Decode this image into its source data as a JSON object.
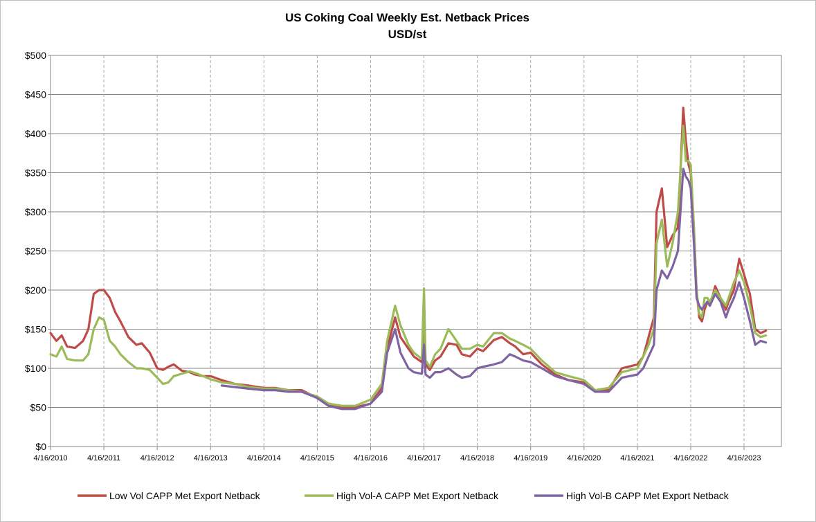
{
  "chart_data": {
    "type": "line",
    "title": "US Coking Coal Weekly Est. Netback Prices",
    "subtitle": "USD/st",
    "xlabel": "",
    "ylabel": "",
    "ylim": [
      0,
      500
    ],
    "y_ticks": [
      "$0",
      "$50",
      "$100",
      "$150",
      "$200",
      "$250",
      "$300",
      "$350",
      "$400",
      "$450",
      "$500"
    ],
    "x_ticks": [
      "4/16/2010",
      "4/16/2011",
      "4/16/2012",
      "4/16/2013",
      "4/16/2014",
      "4/16/2015",
      "4/16/2016",
      "4/16/2017",
      "4/16/2018",
      "4/16/2019",
      "4/16/2020",
      "4/16/2021",
      "4/16/2022",
      "4/16/2023"
    ],
    "xlim": [
      2010.29,
      2023.99
    ],
    "grid": {
      "horizontal": true,
      "vertical": "dashed"
    },
    "legend_position": "bottom",
    "series": [
      {
        "name": "Low Vol CAPP Met Export Netback",
        "color": "#be4b48",
        "x": [
          2010.29,
          2010.4,
          2010.5,
          2010.6,
          2010.75,
          2010.9,
          2011.0,
          2011.1,
          2011.2,
          2011.29,
          2011.4,
          2011.5,
          2011.6,
          2011.75,
          2011.9,
          2012.0,
          2012.15,
          2012.29,
          2012.4,
          2012.5,
          2012.6,
          2012.75,
          2012.9,
          2013.0,
          2013.15,
          2013.29,
          2013.5,
          2013.75,
          2014.0,
          2014.29,
          2014.5,
          2014.75,
          2015.0,
          2015.29,
          2015.5,
          2015.75,
          2016.0,
          2016.29,
          2016.5,
          2016.6,
          2016.75,
          2016.85,
          2017.0,
          2017.1,
          2017.25,
          2017.29,
          2017.32,
          2017.4,
          2017.5,
          2017.6,
          2017.75,
          2017.9,
          2018.0,
          2018.15,
          2018.29,
          2018.4,
          2018.6,
          2018.75,
          2018.9,
          2019.0,
          2019.15,
          2019.29,
          2019.5,
          2019.75,
          2020.0,
          2020.29,
          2020.5,
          2020.75,
          2021.0,
          2021.29,
          2021.4,
          2021.5,
          2021.6,
          2021.65,
          2021.75,
          2021.85,
          2021.95,
          2022.05,
          2022.15,
          2022.2,
          2022.25,
          2022.29,
          2022.35,
          2022.4,
          2022.45,
          2022.5,
          2022.55,
          2022.6,
          2022.65,
          2022.75,
          2022.85,
          2022.95,
          2023.0,
          2023.1,
          2023.2,
          2023.29,
          2023.4,
          2023.5,
          2023.6,
          2023.7
        ],
        "values": [
          145,
          135,
          142,
          128,
          126,
          135,
          150,
          195,
          200,
          200,
          190,
          172,
          160,
          140,
          130,
          132,
          120,
          100,
          98,
          102,
          105,
          97,
          95,
          92,
          90,
          90,
          85,
          80,
          78,
          75,
          75,
          72,
          72,
          62,
          52,
          50,
          50,
          55,
          75,
          125,
          165,
          140,
          125,
          115,
          108,
          170,
          105,
          98,
          110,
          115,
          132,
          130,
          118,
          115,
          125,
          122,
          136,
          140,
          132,
          128,
          118,
          120,
          105,
          92,
          85,
          82,
          72,
          72,
          100,
          105,
          115,
          140,
          165,
          300,
          330,
          255,
          270,
          280,
          433,
          390,
          360,
          350,
          280,
          200,
          165,
          160,
          175,
          185,
          180,
          205,
          190,
          175,
          185,
          200,
          240,
          220,
          195,
          150,
          145,
          148
        ]
      },
      {
        "name": "High Vol-A CAPP Met Export Netback",
        "color": "#9bbb59",
        "x": [
          2010.29,
          2010.4,
          2010.5,
          2010.6,
          2010.75,
          2010.9,
          2011.0,
          2011.1,
          2011.2,
          2011.29,
          2011.4,
          2011.5,
          2011.6,
          2011.75,
          2011.9,
          2012.0,
          2012.15,
          2012.29,
          2012.4,
          2012.5,
          2012.6,
          2012.75,
          2012.9,
          2013.0,
          2013.15,
          2013.29,
          2013.5,
          2013.75,
          2014.0,
          2014.29,
          2014.5,
          2014.75,
          2015.0,
          2015.29,
          2015.5,
          2015.75,
          2016.0,
          2016.29,
          2016.5,
          2016.6,
          2016.75,
          2016.85,
          2017.0,
          2017.1,
          2017.25,
          2017.29,
          2017.32,
          2017.4,
          2017.5,
          2017.6,
          2017.75,
          2017.9,
          2018.0,
          2018.15,
          2018.29,
          2018.4,
          2018.6,
          2018.75,
          2018.9,
          2019.0,
          2019.15,
          2019.29,
          2019.5,
          2019.75,
          2020.0,
          2020.29,
          2020.5,
          2020.75,
          2021.0,
          2021.29,
          2021.4,
          2021.5,
          2021.6,
          2021.65,
          2021.75,
          2021.85,
          2021.95,
          2022.05,
          2022.15,
          2022.2,
          2022.25,
          2022.29,
          2022.35,
          2022.4,
          2022.45,
          2022.5,
          2022.55,
          2022.6,
          2022.65,
          2022.75,
          2022.85,
          2022.95,
          2023.0,
          2023.1,
          2023.2,
          2023.29,
          2023.4,
          2023.5,
          2023.6,
          2023.7
        ],
        "values": [
          118,
          115,
          128,
          112,
          110,
          110,
          118,
          150,
          165,
          162,
          135,
          128,
          118,
          108,
          100,
          100,
          98,
          88,
          80,
          82,
          90,
          93,
          96,
          94,
          90,
          86,
          82,
          80,
          76,
          74,
          74,
          72,
          70,
          64,
          55,
          52,
          52,
          60,
          80,
          135,
          180,
          155,
          130,
          120,
          112,
          202,
          110,
          102,
          118,
          125,
          150,
          135,
          125,
          125,
          130,
          128,
          145,
          145,
          138,
          135,
          130,
          125,
          110,
          95,
          90,
          85,
          72,
          75,
          95,
          100,
          115,
          130,
          150,
          260,
          290,
          230,
          260,
          300,
          410,
          365,
          365,
          360,
          280,
          200,
          170,
          165,
          190,
          190,
          185,
          200,
          190,
          180,
          190,
          210,
          225,
          210,
          180,
          145,
          140,
          142
        ]
      },
      {
        "name": "High Vol-B CAPP Met Export Netback",
        "color": "#8064a2",
        "x": [
          2013.5,
          2013.75,
          2014.0,
          2014.29,
          2014.5,
          2014.75,
          2015.0,
          2015.29,
          2015.5,
          2015.75,
          2016.0,
          2016.29,
          2016.5,
          2016.6,
          2016.75,
          2016.85,
          2017.0,
          2017.1,
          2017.25,
          2017.29,
          2017.32,
          2017.4,
          2017.5,
          2017.6,
          2017.75,
          2017.9,
          2018.0,
          2018.15,
          2018.29,
          2018.4,
          2018.6,
          2018.75,
          2018.9,
          2019.0,
          2019.15,
          2019.29,
          2019.5,
          2019.75,
          2020.0,
          2020.29,
          2020.5,
          2020.75,
          2021.0,
          2021.29,
          2021.4,
          2021.5,
          2021.6,
          2021.65,
          2021.75,
          2021.85,
          2021.95,
          2022.05,
          2022.15,
          2022.2,
          2022.25,
          2022.29,
          2022.35,
          2022.4,
          2022.45,
          2022.5,
          2022.55,
          2022.6,
          2022.65,
          2022.75,
          2022.85,
          2022.95,
          2023.0,
          2023.1,
          2023.2,
          2023.29,
          2023.4,
          2023.5,
          2023.6,
          2023.7
        ],
        "values": [
          78,
          76,
          74,
          72,
          72,
          70,
          70,
          62,
          52,
          48,
          48,
          55,
          70,
          120,
          150,
          120,
          100,
          95,
          93,
          130,
          92,
          88,
          95,
          95,
          100,
          92,
          88,
          90,
          100,
          102,
          105,
          108,
          118,
          115,
          110,
          108,
          100,
          90,
          85,
          80,
          70,
          70,
          88,
          92,
          100,
          115,
          130,
          200,
          225,
          215,
          230,
          250,
          355,
          345,
          340,
          330,
          260,
          190,
          180,
          175,
          180,
          185,
          180,
          195,
          185,
          165,
          175,
          190,
          210,
          190,
          160,
          130,
          135,
          133
        ]
      }
    ]
  }
}
